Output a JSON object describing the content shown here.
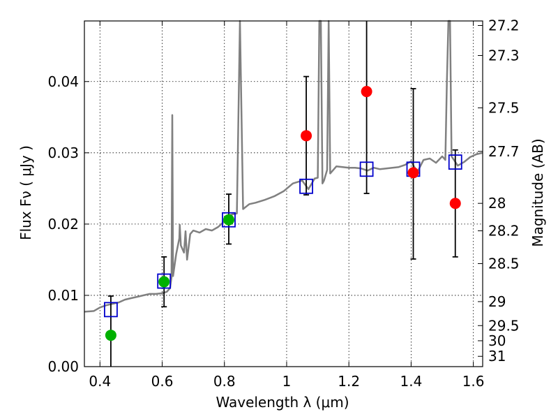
{
  "chart_data": {
    "type": "scatter",
    "xlabel": "Wavelength  λ (μm)",
    "ylabel": "Flux  Fν  ( μJy )",
    "y2label": "Magnitude (AB)",
    "xlim": [
      0.35,
      1.63
    ],
    "ylim": [
      0.0,
      0.0485
    ],
    "x_ticks": [
      0.4,
      0.6,
      0.8,
      1.0,
      1.2,
      1.4,
      1.6
    ],
    "x_tick_labels": [
      "0.4",
      "0.6",
      "0.8",
      "1",
      "1.2",
      "1.4",
      "1.6"
    ],
    "y_ticks": [
      0.0,
      0.01,
      0.02,
      0.03,
      0.04
    ],
    "y_tick_labels": [
      "0.00",
      "0.01",
      "0.02",
      "0.03",
      "0.04"
    ],
    "y2_tick_labels": [
      "27.2",
      "27.3",
      "27.5",
      "27.7",
      "28",
      "28.2",
      "28.5",
      "29",
      "29.5",
      "30",
      "31"
    ],
    "grid": true,
    "colors": {
      "model": "#808080",
      "detection": "#00b000",
      "upper": "#ff0000",
      "synthetic": "#0000cc",
      "errorbar": "#000000"
    },
    "model_spectrum": {
      "x": [
        0.35,
        0.38,
        0.4,
        0.42,
        0.44,
        0.46,
        0.48,
        0.5,
        0.52,
        0.54,
        0.56,
        0.58,
        0.6,
        0.615,
        0.625,
        0.63,
        0.6325,
        0.635,
        0.645,
        0.655,
        0.6565,
        0.66,
        0.67,
        0.675,
        0.68,
        0.69,
        0.7,
        0.72,
        0.74,
        0.76,
        0.78,
        0.8,
        0.82,
        0.84,
        0.85,
        0.86,
        0.88,
        0.9,
        0.93,
        0.96,
        0.99,
        1.02,
        1.05,
        1.07,
        1.09,
        1.1,
        1.105,
        1.11,
        1.115,
        1.12,
        1.13,
        1.135,
        1.14,
        1.16,
        1.18,
        1.2,
        1.22,
        1.24,
        1.26,
        1.28,
        1.3,
        1.32,
        1.34,
        1.36,
        1.38,
        1.4,
        1.42,
        1.44,
        1.46,
        1.48,
        1.5,
        1.51,
        1.515,
        1.52,
        1.525,
        1.53,
        1.55,
        1.57,
        1.59,
        1.61,
        1.63
      ],
      "y": [
        0.0077,
        0.0078,
        0.0083,
        0.0086,
        0.0088,
        0.009,
        0.0094,
        0.0096,
        0.0098,
        0.01,
        0.0102,
        0.0102,
        0.0103,
        0.0105,
        0.011,
        0.0125,
        0.0353,
        0.0127,
        0.0158,
        0.018,
        0.0199,
        0.017,
        0.016,
        0.019,
        0.015,
        0.0186,
        0.0191,
        0.0188,
        0.0193,
        0.0191,
        0.0196,
        0.0204,
        0.0213,
        0.0215,
        0.049,
        0.0221,
        0.0228,
        0.023,
        0.0234,
        0.0239,
        0.0246,
        0.0257,
        0.0261,
        0.0249,
        0.0264,
        0.0265,
        0.049,
        0.049,
        0.0257,
        0.0261,
        0.0276,
        0.049,
        0.0271,
        0.0281,
        0.028,
        0.0279,
        0.0279,
        0.0278,
        0.0275,
        0.0279,
        0.0277,
        0.0278,
        0.0279,
        0.028,
        0.0283,
        0.0288,
        0.0273,
        0.029,
        0.0292,
        0.0286,
        0.0295,
        0.029,
        0.04,
        0.049,
        0.049,
        0.0295,
        0.0282,
        0.0287,
        0.0294,
        0.0298,
        0.03
      ]
    },
    "series": [
      {
        "name": "",
        "marker": "circle",
        "color": "#00b000",
        "points": [
          {
            "x": 0.435,
            "y": 0.0044
          },
          {
            "x": 0.606,
            "y": 0.0119
          },
          {
            "x": 0.814,
            "y": 0.0206
          }
        ]
      },
      {
        "name": "",
        "marker": "circle",
        "color": "#ff0000",
        "points": [
          {
            "x": 1.063,
            "y": 0.0324
          },
          {
            "x": 1.257,
            "y": 0.0386
          },
          {
            "x": 1.407,
            "y": 0.0272
          },
          {
            "x": 1.542,
            "y": 0.0229
          }
        ]
      },
      {
        "name": "",
        "marker": "square",
        "color": "#0000cc",
        "points": [
          {
            "x": 0.435,
            "y": 0.008
          },
          {
            "x": 0.606,
            "y": 0.012
          },
          {
            "x": 0.814,
            "y": 0.0206
          },
          {
            "x": 1.063,
            "y": 0.0253
          },
          {
            "x": 1.257,
            "y": 0.0277
          },
          {
            "x": 1.407,
            "y": 0.0277
          },
          {
            "x": 1.542,
            "y": 0.0287
          }
        ]
      }
    ],
    "error_bars": [
      {
        "x": 0.435,
        "low": 0.0,
        "high": 0.0099
      },
      {
        "x": 0.606,
        "low": 0.0084,
        "high": 0.0154
      },
      {
        "x": 0.814,
        "low": 0.0172,
        "high": 0.0242
      },
      {
        "x": 1.063,
        "low": 0.0241,
        "high": 0.0407
      },
      {
        "x": 1.257,
        "low": 0.0243,
        "high": 0.0485
      },
      {
        "x": 1.407,
        "low": 0.0151,
        "high": 0.039
      },
      {
        "x": 1.542,
        "low": 0.0154,
        "high": 0.0304
      }
    ]
  }
}
